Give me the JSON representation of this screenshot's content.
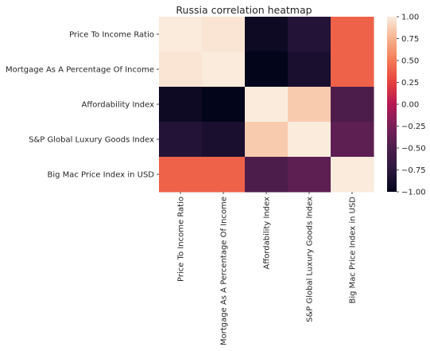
{
  "chart_data": {
    "type": "heatmap",
    "title": "Russia correlation heatmap",
    "rows": [
      "Price To Income Ratio",
      "Mortgage As A Percentage Of Income",
      "Affordability Index",
      "S&P Global Luxury Goods Index",
      "Big Mac Price Index in USD"
    ],
    "columns": [
      "Price To Income Ratio",
      "Mortgage As A Percentage Of Income",
      "Affordability Index",
      "S&P Global Luxury Goods Index",
      "Big Mac Price Index in USD"
    ],
    "values": [
      [
        1.0,
        0.97,
        -0.93,
        -0.8,
        0.4
      ],
      [
        0.97,
        1.0,
        -1.0,
        -0.86,
        0.4
      ],
      [
        -0.93,
        -1.0,
        1.0,
        0.86,
        -0.5
      ],
      [
        -0.8,
        -0.86,
        0.86,
        1.0,
        -0.4
      ],
      [
        0.4,
        0.4,
        -0.5,
        -0.4,
        1.0
      ]
    ],
    "vmin": -1.0,
    "vmax": 1.0,
    "colormap": "rocket",
    "colorbar_ticks": [
      "1.00",
      "0.75",
      "0.50",
      "0.25",
      "0.00",
      "−0.25",
      "−0.50",
      "−0.75",
      "−1.00"
    ],
    "colorbar_tick_values": [
      1.0,
      0.75,
      0.5,
      0.25,
      0.0,
      -0.25,
      -0.5,
      -0.75,
      -1.0
    ],
    "colorbar_placement": "right",
    "grid": false
  }
}
